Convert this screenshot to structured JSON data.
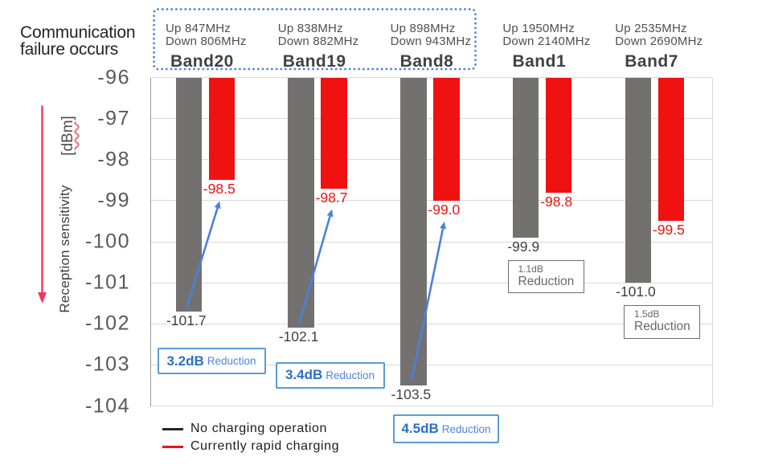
{
  "title": {
    "line1": "Communication",
    "line2": "failure occurs"
  },
  "y_axis": {
    "label": "Reception sensitivity",
    "units": "[dBm]",
    "ticks": [
      "-96",
      "-97",
      "-98",
      "-99",
      "-100",
      "-101",
      "-102",
      "-103",
      "-104"
    ]
  },
  "legend": {
    "items": [
      {
        "label": "No charging operation",
        "color": "#262626"
      },
      {
        "label": "Currently rapid charging",
        "color": "#f01111"
      }
    ]
  },
  "colors": {
    "gray_bar": "#737070",
    "red_bar": "#f01111",
    "blue_accent": "#4a81d8",
    "red_arrow": "#ef3a5c",
    "gridline": "#d9d9d9"
  },
  "chart_data": {
    "type": "bar",
    "title": "Reception sensitivity degradation by band",
    "xlabel": "",
    "ylabel": "Reception sensitivity [dBm]",
    "ylim": [
      -104,
      -96
    ],
    "categories": [
      "Band20",
      "Band19",
      "Band8",
      "Band1",
      "Band7"
    ],
    "series": [
      {
        "name": "No charging operation",
        "color": "#737070",
        "values": [
          -101.7,
          -102.1,
          -103.5,
          -99.9,
          -101.0
        ]
      },
      {
        "name": "Currently rapid charging",
        "color": "#f01111",
        "values": [
          -98.5,
          -98.7,
          -99.0,
          -98.8,
          -99.5
        ]
      }
    ],
    "bands": [
      {
        "name": "Band20",
        "freq_up": "Up 847MHz",
        "freq_down": "Down 806MHz",
        "no_charging": -101.7,
        "no_charging_label": "-101.7",
        "rapid": -98.5,
        "rapid_label": "-98.5",
        "reduction_value": "3.2dB",
        "reduction_word": "Reduction",
        "reduction_style": "blue",
        "highlighted": true
      },
      {
        "name": "Band19",
        "freq_up": "Up 838MHz",
        "freq_down": "Down 882MHz",
        "no_charging": -102.1,
        "no_charging_label": "-102.1",
        "rapid": -98.7,
        "rapid_label": "-98.7",
        "reduction_value": "3.4dB",
        "reduction_word": "Reduction",
        "reduction_style": "blue",
        "highlighted": true
      },
      {
        "name": "Band8",
        "freq_up": "Up 898MHz",
        "freq_down": "Down 943MHz",
        "no_charging": -103.5,
        "no_charging_label": "-103.5",
        "rapid": -99.0,
        "rapid_label": "-99.0",
        "reduction_value": "4.5dB",
        "reduction_word": "Reduction",
        "reduction_style": "blue",
        "highlighted": true
      },
      {
        "name": "Band1",
        "freq_up": "Up 1950MHz",
        "freq_down": "Down 2140MHz",
        "no_charging": -99.9,
        "no_charging_label": "-99.9",
        "rapid": -98.8,
        "rapid_label": "-98.8",
        "reduction_value": "1.1dB",
        "reduction_word": "Reduction",
        "reduction_style": "gray",
        "highlighted": false
      },
      {
        "name": "Band7",
        "freq_up": "Up 2535MHz",
        "freq_down": "Down 2690MHz",
        "no_charging": -101.0,
        "no_charging_label": "-101.0",
        "rapid": -99.5,
        "rapid_label": "-99.5",
        "reduction_value": "1.5dB",
        "reduction_word": "Reduction",
        "reduction_style": "gray",
        "highlighted": false
      }
    ]
  }
}
